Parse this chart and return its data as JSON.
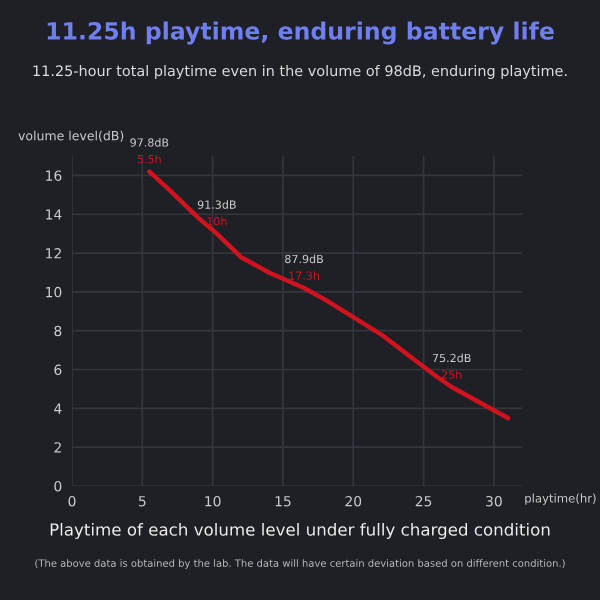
{
  "chart_data": {
    "type": "line",
    "title": "11.25h playtime, enduring battery life",
    "subtitle": "11.25-hour total playtime even in the volume of 98dB, enduring playtime.",
    "xlabel": "playtime(hr)",
    "ylabel": "volume level(dB)",
    "x": [
      5.5,
      7,
      9,
      10.3,
      12,
      14,
      16.5,
      18,
      20,
      22,
      24,
      26,
      27,
      29,
      31
    ],
    "series": [
      {
        "color": "#d0131f",
        "values": [
          16.2,
          15.2,
          13.8,
          13,
          11.8,
          11,
          10.2,
          9.6,
          8.7,
          7.8,
          6.7,
          5.6,
          5.1,
          4.3,
          3.5
        ]
      }
    ],
    "annotations": [
      {
        "text": "97.8dB",
        "x": 5.5,
        "y": 16.2
      },
      {
        "text": "5.5h",
        "x": 5.5,
        "y": 16.2
      },
      {
        "text": "91.3dB",
        "x": 10.3,
        "y": 13
      },
      {
        "text": "10h",
        "x": 10.3,
        "y": 13
      },
      {
        "text": "87.9dB",
        "x": 16.5,
        "y": 10.2
      },
      {
        "text": "17.3h",
        "x": 16.5,
        "y": 10.2
      },
      {
        "text": "75.2dB",
        "x": 27,
        "y": 5.1
      },
      {
        "text": "25h",
        "x": 27,
        "y": 5.1
      },
      "Playtime of each volume level under fully charged condition",
      "(The above data is obtained by the lab. The data will have certain deviation based on different condition.)"
    ],
    "xlim": [
      0,
      32
    ],
    "ylim": [
      0,
      17
    ],
    "xticks": [
      0,
      5,
      10,
      15,
      20,
      25,
      30
    ],
    "yticks": [
      0,
      2,
      4,
      6,
      8,
      10,
      12,
      14,
      16
    ],
    "grid": true,
    "marker": "none",
    "line_style": "solid",
    "legend": false
  }
}
